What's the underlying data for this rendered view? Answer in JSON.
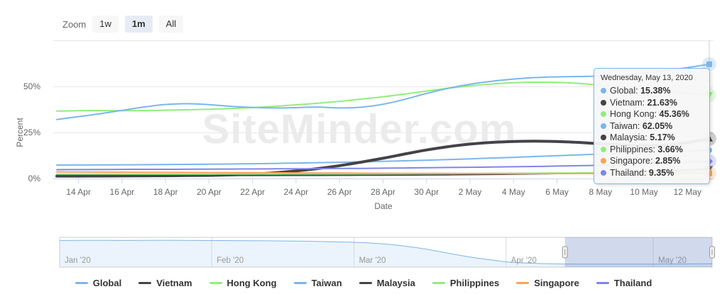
{
  "toolbar": {
    "zoom_label": "Zoom",
    "buttons": [
      {
        "label": "1w",
        "active": false
      },
      {
        "label": "1m",
        "active": true
      },
      {
        "label": "All",
        "active": false
      }
    ]
  },
  "watermark": "SiteMinder.com",
  "chart_data": {
    "type": "line",
    "title": "",
    "xlabel": "Date",
    "ylabel": "Percent",
    "ylim": [
      0,
      75
    ],
    "grid": true,
    "legend_position": "bottom",
    "yticks": [
      {
        "value": 0,
        "label": "0%"
      },
      {
        "value": 25,
        "label": "25%"
      },
      {
        "value": 50,
        "label": "50%"
      }
    ],
    "xtick_labels": [
      "14 Apr",
      "16 Apr",
      "18 Apr",
      "20 Apr",
      "22 Apr",
      "24 Apr",
      "26 Apr",
      "28 Apr",
      "30 Apr",
      "2 May",
      "4 May",
      "6 May",
      "8 May",
      "10 May",
      "12 May"
    ],
    "x": [
      "13 Apr",
      "14 Apr",
      "15 Apr",
      "16 Apr",
      "17 Apr",
      "18 Apr",
      "19 Apr",
      "20 Apr",
      "21 Apr",
      "22 Apr",
      "23 Apr",
      "24 Apr",
      "25 Apr",
      "26 Apr",
      "27 Apr",
      "28 Apr",
      "29 Apr",
      "30 Apr",
      "1 May",
      "2 May",
      "3 May",
      "4 May",
      "5 May",
      "6 May",
      "7 May",
      "8 May",
      "9 May",
      "10 May",
      "11 May",
      "12 May",
      "13 May"
    ],
    "series": [
      {
        "name": "Global",
        "color": "#7cb5ec",
        "width": 2,
        "marker": "circle",
        "halo": false,
        "values": [
          7.3,
          7.35,
          7.4,
          7.45,
          7.5,
          7.6,
          7.7,
          7.8,
          7.9,
          8.05,
          8.2,
          8.4,
          8.6,
          8.8,
          9.05,
          9.3,
          9.6,
          9.95,
          10.3,
          10.7,
          11.1,
          11.5,
          11.95,
          12.4,
          12.85,
          13.3,
          13.75,
          14.2,
          14.6,
          15.0,
          15.38
        ]
      },
      {
        "name": "Vietnam",
        "color": "#434348",
        "width": 4,
        "marker": "triangle",
        "halo": true,
        "values": [
          1.3,
          1.3,
          1.35,
          1.4,
          1.45,
          1.5,
          1.6,
          1.7,
          1.95,
          2.4,
          3.1,
          4.1,
          5.4,
          7.0,
          8.9,
          11.0,
          13.3,
          15.5,
          17.3,
          18.7,
          19.6,
          20.1,
          20.25,
          20.1,
          19.6,
          18.9,
          18.2,
          17.8,
          18.1,
          19.5,
          21.63
        ]
      },
      {
        "name": "Hong Kong",
        "color": "#90ed7d",
        "width": 2,
        "marker": "triangle-down",
        "halo": true,
        "values": [
          36.6,
          36.8,
          36.9,
          36.85,
          36.9,
          37.1,
          37.3,
          37.6,
          38.0,
          38.5,
          39.2,
          40.0,
          40.9,
          41.9,
          43.1,
          44.4,
          45.9,
          47.5,
          49.0,
          50.3,
          51.3,
          52.0,
          52.3,
          52.2,
          51.6,
          50.6,
          49.5,
          48.3,
          47.2,
          46.2,
          45.36
        ]
      },
      {
        "name": "Taiwan",
        "color": "#7cb5ec",
        "width": 2,
        "marker": "square",
        "halo": true,
        "values": [
          32.0,
          33.6,
          35.2,
          37.0,
          38.8,
          40.2,
          40.6,
          40.1,
          39.2,
          38.6,
          38.3,
          38.5,
          38.8,
          38.3,
          38.7,
          40.3,
          43.0,
          46.2,
          49.0,
          51.2,
          52.8,
          54.0,
          54.8,
          55.2,
          55.4,
          55.6,
          56.2,
          57.2,
          58.6,
          60.2,
          62.05
        ]
      },
      {
        "name": "Malaysia",
        "color": "#434348",
        "width": 2,
        "marker": "triangle-down",
        "halo": false,
        "values": [
          1.8,
          1.8,
          1.8,
          1.78,
          1.76,
          1.74,
          1.72,
          1.7,
          1.7,
          1.7,
          1.7,
          1.72,
          1.74,
          1.76,
          1.8,
          1.85,
          1.9,
          1.97,
          2.05,
          2.15,
          2.26,
          2.38,
          2.52,
          2.7,
          2.9,
          3.15,
          3.45,
          3.8,
          4.2,
          4.65,
          5.17
        ]
      },
      {
        "name": "Philippines",
        "color": "#90ed7d",
        "width": 2,
        "marker": "circle",
        "halo": false,
        "values": [
          2.4,
          2.4,
          2.4,
          2.4,
          2.4,
          2.4,
          2.42,
          2.44,
          2.46,
          2.48,
          2.5,
          2.5,
          2.5,
          2.52,
          2.54,
          2.56,
          2.6,
          2.63,
          2.67,
          2.72,
          2.77,
          2.83,
          2.9,
          2.97,
          3.05,
          3.15,
          3.25,
          3.37,
          3.47,
          3.57,
          3.66
        ]
      },
      {
        "name": "Singapore",
        "color": "#f7a35c",
        "width": 2,
        "marker": "square",
        "halo": true,
        "values": [
          3.6,
          3.55,
          3.5,
          3.45,
          3.4,
          3.35,
          3.3,
          3.25,
          3.2,
          3.15,
          3.1,
          3.05,
          3.0,
          2.95,
          2.9,
          2.86,
          2.82,
          2.79,
          2.76,
          2.74,
          2.72,
          2.7,
          2.7,
          2.71,
          2.72,
          2.74,
          2.76,
          2.78,
          2.8,
          2.82,
          2.85
        ]
      },
      {
        "name": "Thailand",
        "color": "#8085e9",
        "width": 2,
        "marker": "diamond",
        "halo": true,
        "values": [
          4.8,
          4.85,
          4.9,
          4.95,
          5.0,
          5.0,
          5.05,
          5.1,
          5.15,
          5.2,
          5.25,
          5.3,
          5.35,
          5.45,
          5.5,
          5.6,
          5.75,
          5.9,
          6.0,
          6.1,
          6.25,
          6.4,
          6.55,
          6.75,
          6.95,
          7.2,
          7.5,
          7.9,
          8.3,
          8.8,
          9.35
        ]
      }
    ],
    "tooltip": {
      "header": "Wednesday, May 13, 2020",
      "points": [
        {
          "name": "Global",
          "value": "15.38%",
          "color": "#7cb5ec"
        },
        {
          "name": "Vietnam",
          "value": "21.63%",
          "color": "#434348"
        },
        {
          "name": "Hong Kong",
          "value": "45.36%",
          "color": "#90ed7d"
        },
        {
          "name": "Taiwan",
          "value": "62.05%",
          "color": "#7cb5ec"
        },
        {
          "name": "Malaysia",
          "value": "5.17%",
          "color": "#434348"
        },
        {
          "name": "Philippines",
          "value": "3.66%",
          "color": "#90ed7d"
        },
        {
          "name": "Singapore",
          "value": "2.85%",
          "color": "#f7a35c"
        },
        {
          "name": "Thailand",
          "value": "9.35%",
          "color": "#8085e9"
        }
      ]
    },
    "navigator": {
      "month_labels": [
        {
          "label": "Jan '20",
          "day": 0
        },
        {
          "label": "Feb '20",
          "day": 31
        },
        {
          "label": "Mar '20",
          "day": 60
        },
        {
          "label": "Apr '20",
          "day": 91
        },
        {
          "label": "May '20",
          "day": 121
        }
      ],
      "series_days": [
        0,
        7,
        14,
        21,
        28,
        35,
        42,
        49,
        56,
        60,
        64,
        68,
        72,
        76,
        80,
        84,
        88,
        91,
        95,
        99,
        103,
        108,
        113,
        118,
        123,
        128,
        133
      ],
      "series_values": [
        85,
        85.5,
        85,
        85.8,
        85,
        84.6,
        84,
        82.8,
        80.5,
        79,
        76,
        71,
        63,
        53,
        41,
        30,
        21,
        15,
        11,
        9,
        8,
        7.6,
        7.4,
        7.5,
        7.8,
        8.2,
        8.6
      ],
      "selection_start_day": 103,
      "selection_end_day": 133,
      "line_color": "#7cb5ec",
      "mask_color": "rgba(102,133,194,0.3)"
    }
  },
  "legend": {
    "items": [
      {
        "label": "Global",
        "color": "#7cb5ec"
      },
      {
        "label": "Vietnam",
        "color": "#434348"
      },
      {
        "label": "Hong Kong",
        "color": "#90ed7d"
      },
      {
        "label": "Taiwan",
        "color": "#7cb5ec"
      },
      {
        "label": "Malaysia",
        "color": "#434348"
      },
      {
        "label": "Philippines",
        "color": "#90ed7d"
      },
      {
        "label": "Singapore",
        "color": "#f7a35c"
      },
      {
        "label": "Thailand",
        "color": "#8085e9"
      }
    ]
  },
  "colors": {
    "grid": "#e6e6e6",
    "axis": "#ccd6eb",
    "axis_label": "#666666",
    "crosshair": "#cccccc",
    "watermark": "#ebebeb"
  }
}
